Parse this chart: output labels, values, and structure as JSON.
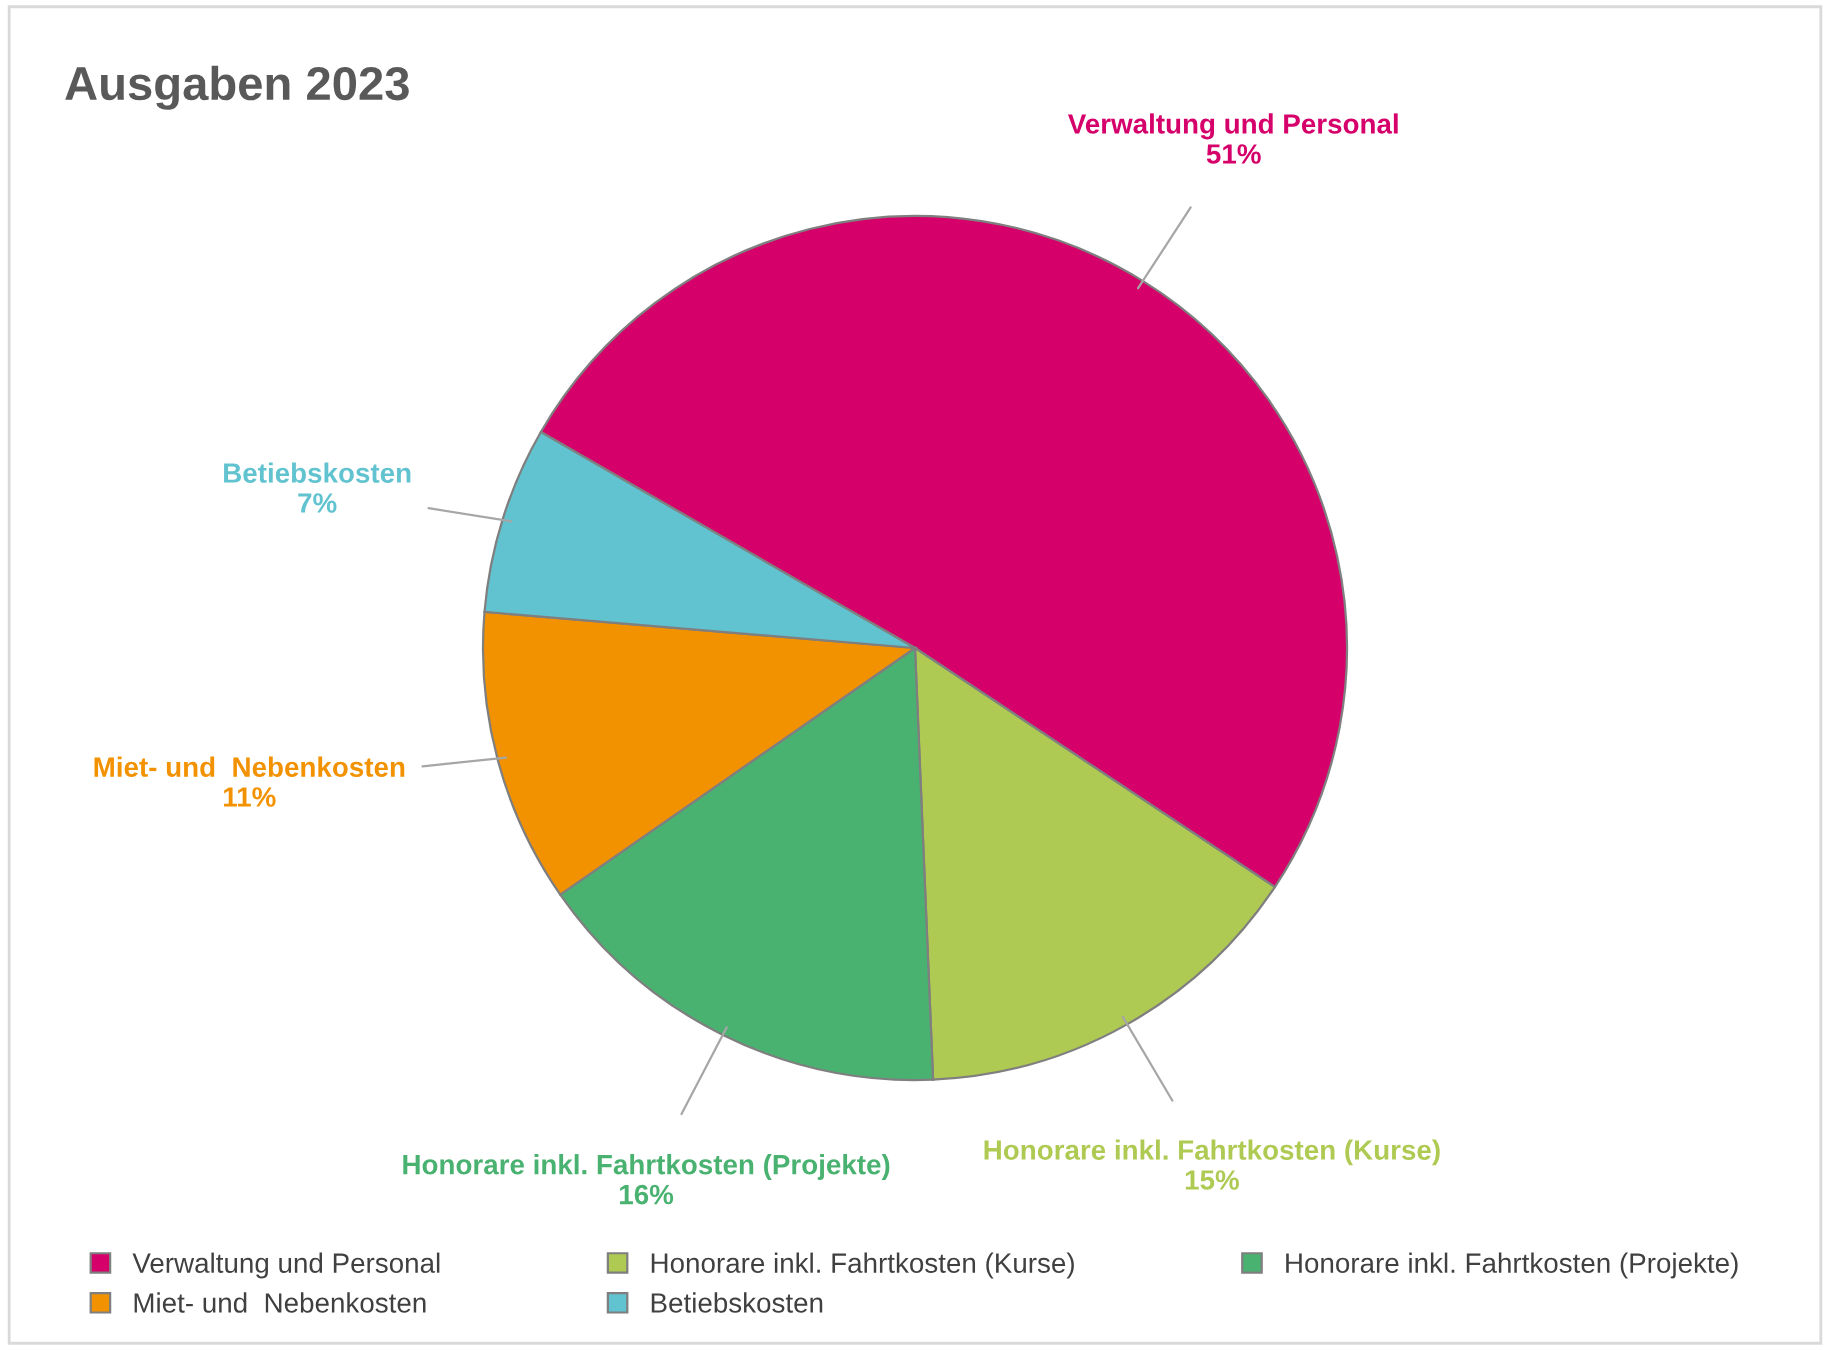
{
  "chart_data": {
    "type": "pie",
    "title": "Ausgaben 2023",
    "categories": [
      "Verwaltung und Personal",
      "Honorare inkl. Fahrtkosten (Kurse)",
      "Honorare inkl. Fahrtkosten (Projekte)",
      "Miet- und  Nebenkosten",
      "Betiebskosten"
    ],
    "values": [
      51,
      15,
      16,
      11,
      7
    ],
    "colors": [
      "#d6006b",
      "#afca52",
      "#4ab271",
      "#f39200",
      "#62c3d0"
    ],
    "value_labels": [
      "51%",
      "15%",
      "16%",
      "11%",
      "7%"
    ],
    "legend": "bottom"
  }
}
